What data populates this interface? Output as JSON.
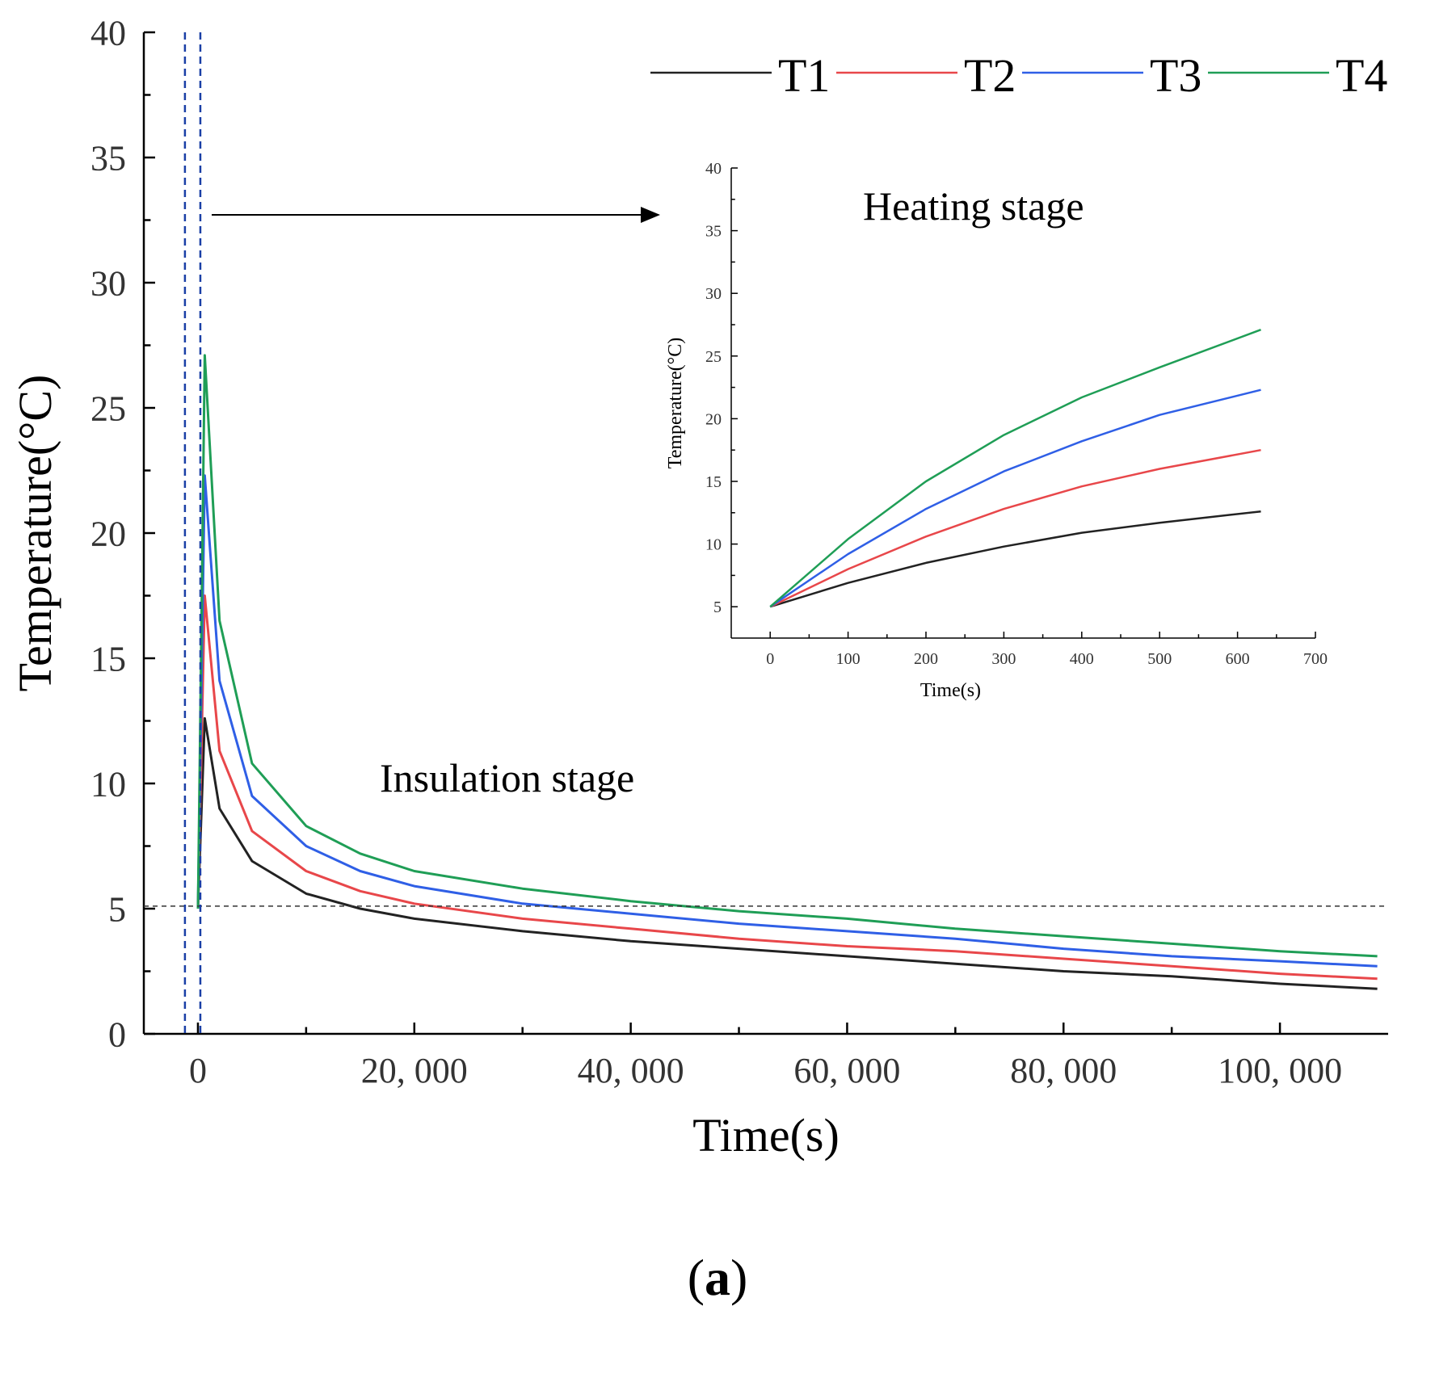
{
  "chart_data": [
    {
      "id": "main",
      "type": "line",
      "title": "",
      "xlabel": "Time(s)",
      "ylabel": "Temperature(°C)",
      "xlim": [
        -5000,
        110000
      ],
      "ylim": [
        0,
        40
      ],
      "xticks": [
        0,
        20000,
        40000,
        60000,
        80000,
        100000
      ],
      "xtick_labels": [
        "0",
        "20, 000",
        "40, 000",
        "60, 000",
        "80, 000",
        "100, 000"
      ],
      "yticks": [
        0,
        5,
        10,
        15,
        20,
        25,
        30,
        35,
        40
      ],
      "ytick_labels": [
        "0",
        "5",
        "10",
        "15",
        "20",
        "25",
        "30",
        "35",
        "40"
      ],
      "reference_line_y": 5.1,
      "heating_window_x": [
        -1200,
        0
      ],
      "annotation": "Insulation stage",
      "legend": {
        "placement": "top-right",
        "entries": [
          "T1",
          "T2",
          "T3",
          "T4"
        ]
      },
      "series": [
        {
          "name": "T1",
          "color": "#222222",
          "x": [
            0,
            630,
            2000,
            5000,
            10000,
            15000,
            20000,
            30000,
            40000,
            50000,
            60000,
            70000,
            80000,
            90000,
            100000,
            109000
          ],
          "values": [
            5,
            12.6,
            9.0,
            6.9,
            5.6,
            5.0,
            4.6,
            4.1,
            3.7,
            3.4,
            3.1,
            2.8,
            2.5,
            2.3,
            2.0,
            1.8
          ]
        },
        {
          "name": "T2",
          "color": "#e8474a",
          "x": [
            0,
            630,
            2000,
            5000,
            10000,
            15000,
            20000,
            30000,
            40000,
            50000,
            60000,
            70000,
            80000,
            90000,
            100000,
            109000
          ],
          "values": [
            5,
            17.5,
            11.3,
            8.1,
            6.5,
            5.7,
            5.2,
            4.6,
            4.2,
            3.8,
            3.5,
            3.3,
            3.0,
            2.7,
            2.4,
            2.2
          ]
        },
        {
          "name": "T3",
          "color": "#2f5fe6",
          "x": [
            0,
            630,
            2000,
            5000,
            10000,
            15000,
            20000,
            30000,
            40000,
            50000,
            60000,
            70000,
            80000,
            90000,
            100000,
            109000
          ],
          "values": [
            5,
            22.3,
            14.1,
            9.5,
            7.5,
            6.5,
            5.9,
            5.2,
            4.8,
            4.4,
            4.1,
            3.8,
            3.4,
            3.1,
            2.9,
            2.7
          ]
        },
        {
          "name": "T4",
          "color": "#1f9e56",
          "x": [
            0,
            630,
            2000,
            5000,
            10000,
            15000,
            20000,
            30000,
            40000,
            50000,
            60000,
            70000,
            80000,
            90000,
            100000,
            109000
          ],
          "values": [
            5,
            27.1,
            16.5,
            10.8,
            8.3,
            7.2,
            6.5,
            5.8,
            5.3,
            4.9,
            4.6,
            4.2,
            3.9,
            3.6,
            3.3,
            3.1
          ]
        }
      ]
    },
    {
      "id": "inset",
      "type": "line",
      "title": "Heating stage",
      "xlabel": "Time(s)",
      "ylabel": "Temperature(°C)",
      "xlim": [
        -50,
        700
      ],
      "ylim": [
        2.5,
        40
      ],
      "xticks": [
        0,
        100,
        200,
        300,
        400,
        500,
        600,
        700
      ],
      "xtick_labels": [
        "0",
        "100",
        "200",
        "300",
        "400",
        "500",
        "600",
        "700"
      ],
      "yticks": [
        5,
        10,
        15,
        20,
        25,
        30,
        35,
        40
      ],
      "ytick_labels": [
        "5",
        "10",
        "15",
        "20",
        "25",
        "30",
        "35",
        "40"
      ],
      "series": [
        {
          "name": "T1",
          "color": "#222222",
          "x": [
            0,
            100,
            200,
            300,
            400,
            500,
            630
          ],
          "values": [
            5,
            6.9,
            8.5,
            9.8,
            10.9,
            11.7,
            12.6
          ]
        },
        {
          "name": "T2",
          "color": "#e8474a",
          "x": [
            0,
            100,
            200,
            300,
            400,
            500,
            630
          ],
          "values": [
            5,
            8.0,
            10.6,
            12.8,
            14.6,
            16.0,
            17.5
          ]
        },
        {
          "name": "T3",
          "color": "#2f5fe6",
          "x": [
            0,
            100,
            200,
            300,
            400,
            500,
            630
          ],
          "values": [
            5,
            9.2,
            12.8,
            15.8,
            18.2,
            20.3,
            22.3
          ]
        },
        {
          "name": "T4",
          "color": "#1f9e56",
          "x": [
            0,
            100,
            200,
            300,
            400,
            500,
            630
          ],
          "values": [
            5,
            10.4,
            15.0,
            18.7,
            21.7,
            24.1,
            27.1
          ]
        }
      ]
    }
  ],
  "caption": {
    "open": "(",
    "letter": "a",
    "close": ")"
  }
}
